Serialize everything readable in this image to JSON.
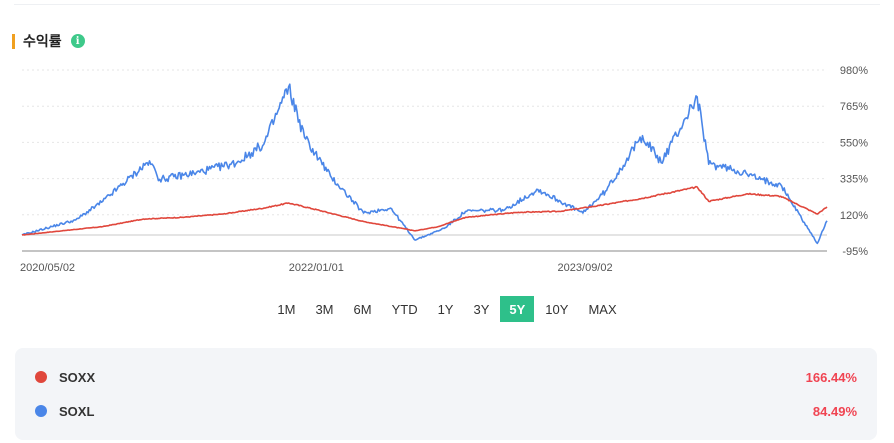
{
  "header": {
    "title": "수익률",
    "info_icon": "info-icon",
    "accent_color": "#f0a020",
    "info_color": "#3ec98a"
  },
  "chart_data": {
    "type": "line",
    "ylim": [
      -95,
      980
    ],
    "y_ticks": [
      "980%",
      "765%",
      "550%",
      "335%",
      "120%",
      "-95%"
    ],
    "y_tick_values": [
      980,
      765,
      550,
      335,
      120,
      -95
    ],
    "zero_line": 0,
    "x_range": [
      "2020-05-02",
      "2025-04-30"
    ],
    "x_ticks": [
      {
        "label": "2020/05/02",
        "date": "2020-05-02"
      },
      {
        "label": "2022/01/01",
        "date": "2022-01-01"
      },
      {
        "label": "2023/09/02",
        "date": "2023-09-02"
      }
    ],
    "grid": true,
    "series": [
      {
        "name": "SOXX",
        "color": "#e0473c",
        "points": [
          [
            "2020-05-02",
            0
          ],
          [
            "2020-08-01",
            25
          ],
          [
            "2020-11-01",
            50
          ],
          [
            "2021-02-01",
            95
          ],
          [
            "2021-05-01",
            105
          ],
          [
            "2021-08-01",
            125
          ],
          [
            "2021-11-01",
            160
          ],
          [
            "2021-12-27",
            190
          ],
          [
            "2022-03-01",
            150
          ],
          [
            "2022-06-15",
            80
          ],
          [
            "2022-10-10",
            25
          ],
          [
            "2022-12-01",
            50
          ],
          [
            "2023-02-01",
            105
          ],
          [
            "2023-06-01",
            135
          ],
          [
            "2023-09-02",
            140
          ],
          [
            "2023-12-01",
            175
          ],
          [
            "2024-03-01",
            215
          ],
          [
            "2024-07-10",
            285
          ],
          [
            "2024-08-05",
            200
          ],
          [
            "2024-11-01",
            245
          ],
          [
            "2025-01-15",
            230
          ],
          [
            "2025-04-08",
            125
          ],
          [
            "2025-04-30",
            166.44
          ]
        ]
      },
      {
        "name": "SOXL",
        "color": "#4a86e8",
        "points": [
          [
            "2020-05-02",
            0
          ],
          [
            "2020-09-01",
            90
          ],
          [
            "2020-11-01",
            200
          ],
          [
            "2021-02-15",
            440
          ],
          [
            "2021-03-10",
            330
          ],
          [
            "2021-06-01",
            370
          ],
          [
            "2021-09-01",
            430
          ],
          [
            "2021-11-01",
            540
          ],
          [
            "2021-12-27",
            880
          ],
          [
            "2022-02-01",
            580
          ],
          [
            "2022-04-01",
            350
          ],
          [
            "2022-06-15",
            130
          ],
          [
            "2022-08-15",
            160
          ],
          [
            "2022-10-10",
            -30
          ],
          [
            "2022-12-15",
            40
          ],
          [
            "2023-02-01",
            140
          ],
          [
            "2023-05-01",
            150
          ],
          [
            "2023-07-15",
            270
          ],
          [
            "2023-10-25",
            130
          ],
          [
            "2023-12-15",
            260
          ],
          [
            "2024-03-08",
            590
          ],
          [
            "2024-04-19",
            430
          ],
          [
            "2024-07-10",
            820
          ],
          [
            "2024-08-05",
            420
          ],
          [
            "2024-10-01",
            390
          ],
          [
            "2024-12-01",
            330
          ],
          [
            "2025-01-15",
            300
          ],
          [
            "2025-04-08",
            -50
          ],
          [
            "2025-04-30",
            84.49
          ]
        ]
      }
    ]
  },
  "ranges": {
    "items": [
      "1M",
      "3M",
      "6M",
      "YTD",
      "1Y",
      "3Y",
      "5Y",
      "10Y",
      "MAX"
    ],
    "active": "5Y",
    "active_color": "#2ec08a"
  },
  "legend": {
    "items": [
      {
        "ticker": "SOXX",
        "return": "166.44%",
        "color": "#e0473c"
      },
      {
        "ticker": "SOXL",
        "return": "84.49%",
        "color": "#4a86e8"
      }
    ],
    "return_color": "#f04452"
  }
}
